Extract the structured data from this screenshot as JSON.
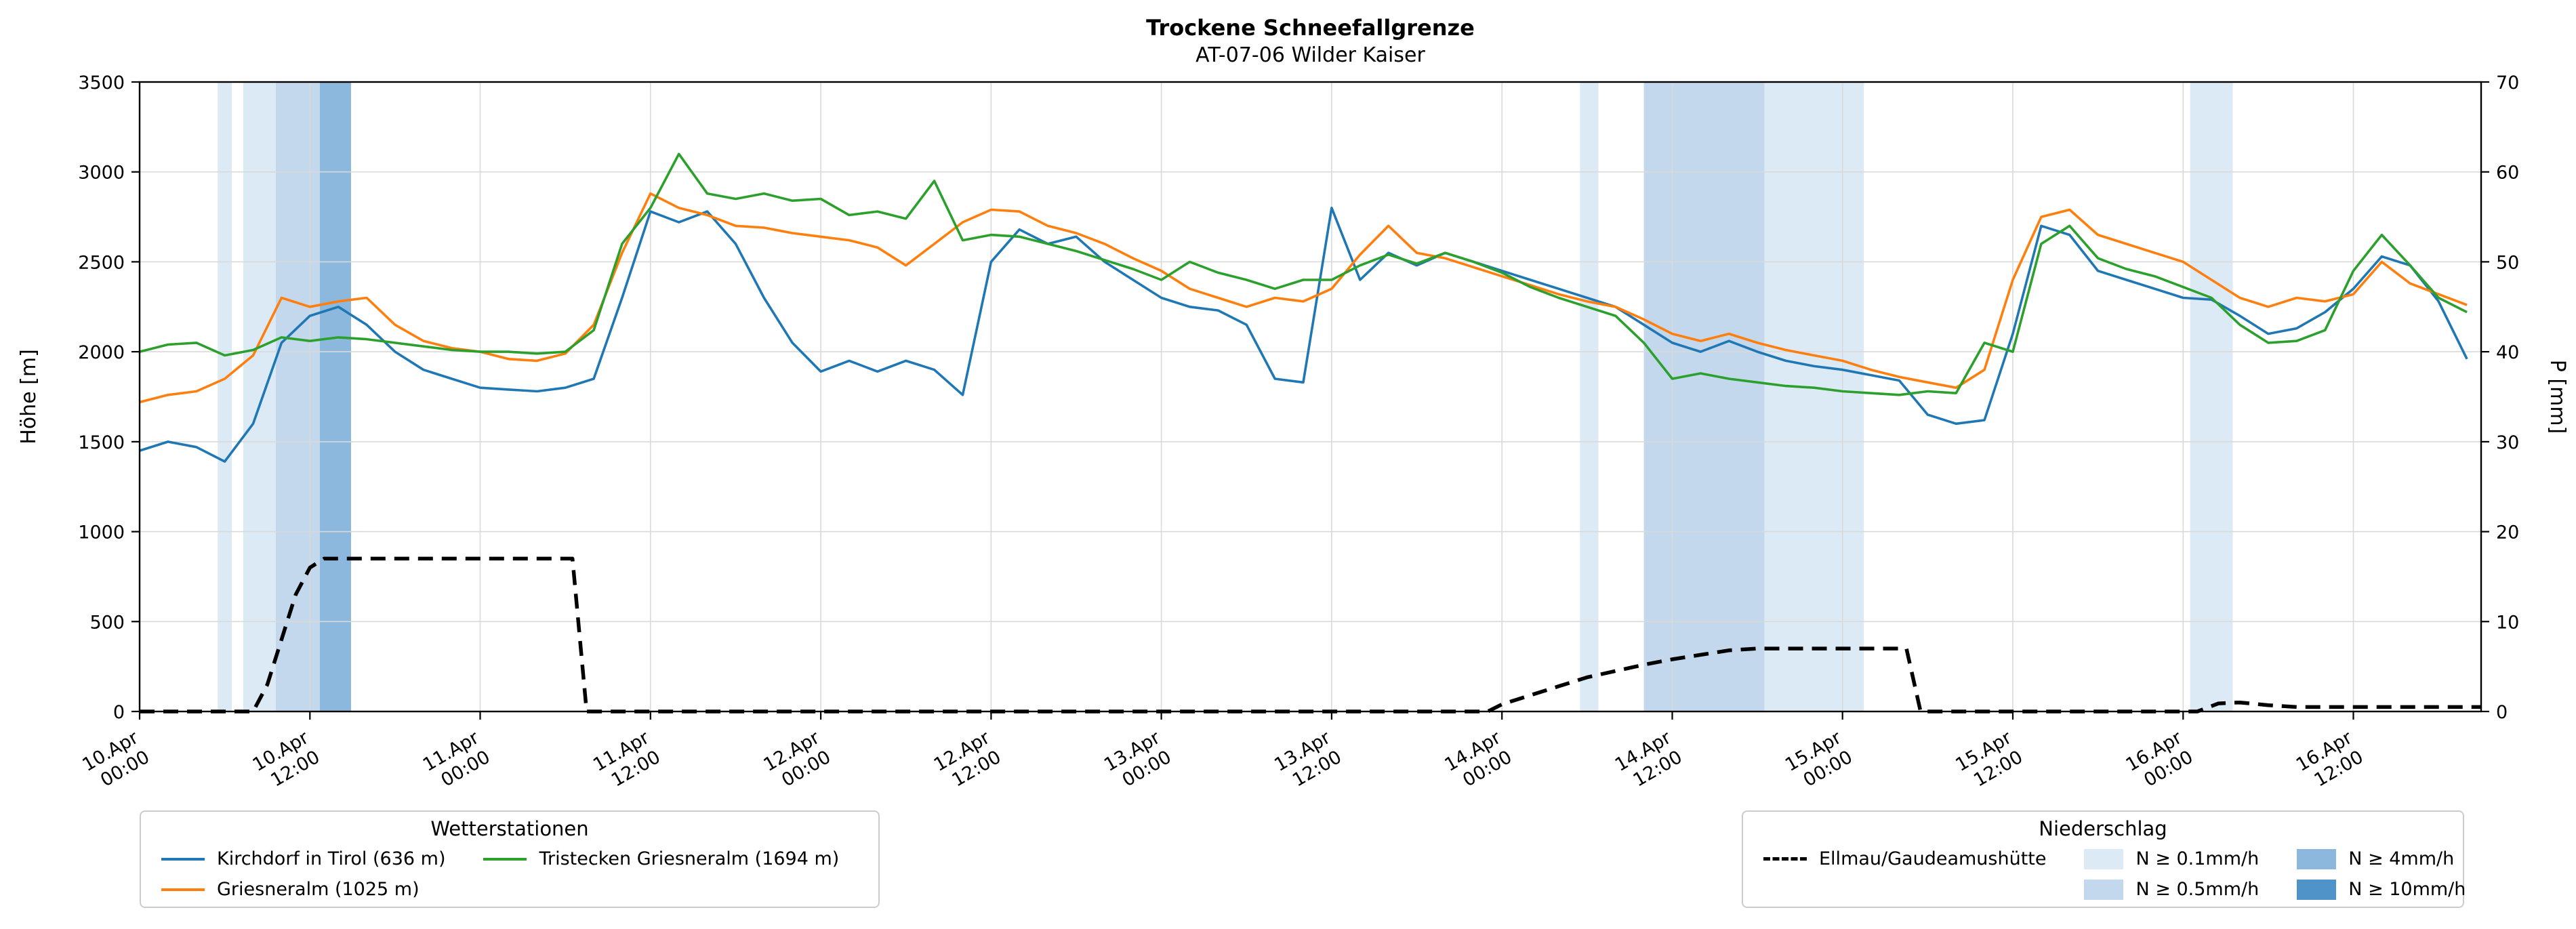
{
  "title": "Trockene Schneefallgrenze",
  "subtitle": "AT-07-06 Wilder Kaiser",
  "axes": {
    "x_max": 165,
    "x_unit": "hours since 10.Apr 00:00",
    "x_ticks": [
      {
        "hour": 0,
        "line1": "10.Apr",
        "line2": "00:00"
      },
      {
        "hour": 12,
        "line1": "10.Apr",
        "line2": "12:00"
      },
      {
        "hour": 24,
        "line1": "11.Apr",
        "line2": "00:00"
      },
      {
        "hour": 36,
        "line1": "11.Apr",
        "line2": "12:00"
      },
      {
        "hour": 48,
        "line1": "12.Apr",
        "line2": "00:00"
      },
      {
        "hour": 60,
        "line1": "12.Apr",
        "line2": "12:00"
      },
      {
        "hour": 72,
        "line1": "13.Apr",
        "line2": "00:00"
      },
      {
        "hour": 84,
        "line1": "13.Apr",
        "line2": "12:00"
      },
      {
        "hour": 96,
        "line1": "14.Apr",
        "line2": "00:00"
      },
      {
        "hour": 108,
        "line1": "14.Apr",
        "line2": "12:00"
      },
      {
        "hour": 120,
        "line1": "15.Apr",
        "line2": "00:00"
      },
      {
        "hour": 132,
        "line1": "15.Apr",
        "line2": "12:00"
      },
      {
        "hour": 144,
        "line1": "16.Apr",
        "line2": "00:00"
      },
      {
        "hour": 156,
        "line1": "16.Apr",
        "line2": "12:00"
      }
    ],
    "y_left": {
      "label": "Höhe [m]",
      "min": 0,
      "max": 3500,
      "step": 500
    },
    "y_right": {
      "label": "P [mm]",
      "min": 0,
      "max": 70,
      "step": 10
    }
  },
  "style": {
    "grid_color": "#d9d9d9",
    "spine_color": "#000000",
    "background": "#ffffff"
  },
  "chart_data": {
    "type": "line",
    "title": "Trockene Schneefallgrenze",
    "subtitle": "AT-07-06 Wilder Kaiser",
    "x_unit": "hours since 10.Apr 00:00",
    "xlim": [
      0,
      165
    ],
    "ylim_left": [
      0,
      3500
    ],
    "ylim_right": [
      0,
      70
    ],
    "grid": true,
    "x": [
      0,
      2,
      4,
      6,
      8,
      10,
      12,
      14,
      16,
      18,
      20,
      22,
      24,
      26,
      28,
      30,
      32,
      34,
      36,
      38,
      40,
      42,
      44,
      46,
      48,
      50,
      52,
      54,
      56,
      58,
      60,
      62,
      64,
      66,
      68,
      70,
      72,
      74,
      76,
      78,
      80,
      82,
      84,
      86,
      88,
      90,
      92,
      94,
      96,
      98,
      100,
      102,
      104,
      106,
      108,
      110,
      112,
      114,
      116,
      118,
      120,
      122,
      124,
      126,
      128,
      130,
      132,
      134,
      136,
      138,
      140,
      142,
      144,
      146,
      148,
      150,
      152,
      154,
      156,
      158,
      160,
      162,
      164
    ],
    "series": [
      {
        "name": "Kirchdorf in Tirol (636 m)",
        "color": "#1f77b4",
        "axis": "left",
        "dash": false,
        "values": [
          1450,
          1500,
          1470,
          1390,
          1600,
          2050,
          2200,
          2250,
          2150,
          2000,
          1900,
          1850,
          1800,
          1790,
          1780,
          1800,
          1850,
          2300,
          2780,
          2720,
          2780,
          2600,
          2300,
          2050,
          1890,
          1950,
          1890,
          1950,
          1900,
          1760,
          2500,
          2680,
          2600,
          2640,
          2500,
          2400,
          2300,
          2250,
          2230,
          2150,
          1850,
          1830,
          2800,
          2400,
          2550,
          2480,
          2550,
          2500,
          2450,
          2400,
          2350,
          2300,
          2250,
          2150,
          2050,
          2000,
          2060,
          2000,
          1950,
          1920,
          1900,
          1870,
          1840,
          1650,
          1600,
          1620,
          2100,
          2700,
          2650,
          2450,
          2400,
          2350,
          2300,
          2290,
          2200,
          2100,
          2130,
          2220,
          2350,
          2530,
          2480,
          2280,
          1960
        ]
      },
      {
        "name": "Griesneralm (1025 m)",
        "color": "#ff7f0e",
        "axis": "left",
        "dash": false,
        "values": [
          1720,
          1760,
          1780,
          1850,
          1980,
          2300,
          2250,
          2280,
          2300,
          2150,
          2060,
          2020,
          2000,
          1960,
          1950,
          1990,
          2150,
          2550,
          2880,
          2800,
          2760,
          2700,
          2690,
          2660,
          2640,
          2620,
          2580,
          2480,
          2600,
          2720,
          2790,
          2780,
          2700,
          2660,
          2600,
          2520,
          2450,
          2350,
          2300,
          2250,
          2300,
          2280,
          2350,
          2540,
          2700,
          2550,
          2520,
          2470,
          2420,
          2370,
          2320,
          2280,
          2250,
          2180,
          2100,
          2060,
          2100,
          2050,
          2010,
          1980,
          1950,
          1900,
          1860,
          1830,
          1800,
          1900,
          2400,
          2750,
          2790,
          2650,
          2600,
          2550,
          2500,
          2400,
          2300,
          2250,
          2300,
          2280,
          2320,
          2500,
          2380,
          2320,
          2260
        ]
      },
      {
        "name": "Tristecken Griesneralm (1694 m)",
        "color": "#2ca02c",
        "axis": "left",
        "dash": false,
        "values": [
          2000,
          2040,
          2050,
          1980,
          2010,
          2080,
          2060,
          2080,
          2070,
          2050,
          2030,
          2010,
          2000,
          2000,
          1990,
          2000,
          2120,
          2600,
          2800,
          3100,
          2880,
          2850,
          2880,
          2840,
          2850,
          2760,
          2780,
          2740,
          2950,
          2620,
          2650,
          2640,
          2600,
          2560,
          2510,
          2460,
          2400,
          2500,
          2440,
          2400,
          2350,
          2400,
          2400,
          2480,
          2540,
          2490,
          2550,
          2500,
          2440,
          2360,
          2300,
          2250,
          2200,
          2050,
          1850,
          1880,
          1850,
          1830,
          1810,
          1800,
          1780,
          1770,
          1760,
          1780,
          1770,
          2050,
          2000,
          2600,
          2700,
          2520,
          2460,
          2420,
          2360,
          2300,
          2150,
          2050,
          2060,
          2120,
          2450,
          2650,
          2480,
          2300,
          2220
        ]
      },
      {
        "name": "Ellmau/Gaudeamushütte",
        "color": "#000000",
        "axis": "right",
        "dash": true,
        "x": [
          0,
          8,
          9,
          10,
          11,
          12,
          13,
          30.5,
          31.5,
          95,
          96,
          98,
          100,
          102,
          104,
          106,
          108,
          110,
          112,
          114,
          124.5,
          125.5,
          145,
          146.5,
          148,
          150,
          152,
          165
        ],
        "values": [
          0,
          0,
          3,
          8,
          13,
          16,
          17,
          17,
          0,
          0,
          0.8,
          1.8,
          2.8,
          3.8,
          4.5,
          5.2,
          5.8,
          6.3,
          6.8,
          7,
          7,
          0,
          0,
          0.9,
          1,
          0.7,
          0.5,
          0.5
        ]
      }
    ],
    "band_levels": [
      {
        "level": 1,
        "label": "N ≥ 0.1mm/h",
        "color": "#dceaf6"
      },
      {
        "level": 2,
        "label": "N ≥ 0.5mm/h",
        "color": "#c3d8ed"
      },
      {
        "level": 3,
        "label": "N ≥ 4mm/h",
        "color": "#8bb8dc"
      },
      {
        "level": 4,
        "label": "N ≥ 10mm/h",
        "color": "#4f93c8"
      }
    ],
    "precip_bands": [
      {
        "start": 5.5,
        "end": 6.5,
        "level": 1
      },
      {
        "start": 7.3,
        "end": 9.6,
        "level": 1
      },
      {
        "start": 9.6,
        "end": 12.7,
        "level": 2
      },
      {
        "start": 12.7,
        "end": 14.9,
        "level": 3
      },
      {
        "start": 101.5,
        "end": 102.8,
        "level": 1
      },
      {
        "start": 106,
        "end": 114.5,
        "level": 2
      },
      {
        "start": 114.5,
        "end": 121.5,
        "level": 1
      },
      {
        "start": 144.5,
        "end": 147.5,
        "level": 1
      }
    ]
  },
  "legends": {
    "stations": {
      "title": "Wetterstationen"
    },
    "precip": {
      "title": "Niederschlag"
    }
  }
}
